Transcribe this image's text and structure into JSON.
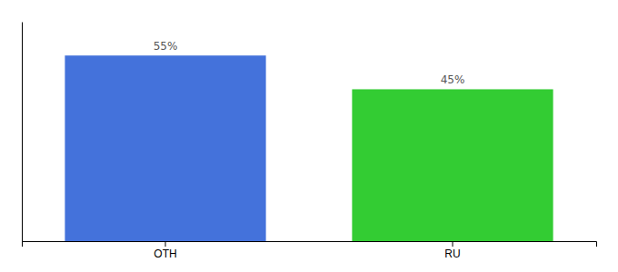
{
  "chart_data": {
    "type": "bar",
    "categories": [
      "OTH",
      "RU"
    ],
    "values": [
      55,
      45
    ],
    "value_labels": [
      "55%",
      "45%"
    ],
    "colors": [
      "#4472db",
      "#33cc33"
    ],
    "ylim": [
      0,
      65
    ],
    "data_labels": true,
    "tick_labels": "x"
  }
}
